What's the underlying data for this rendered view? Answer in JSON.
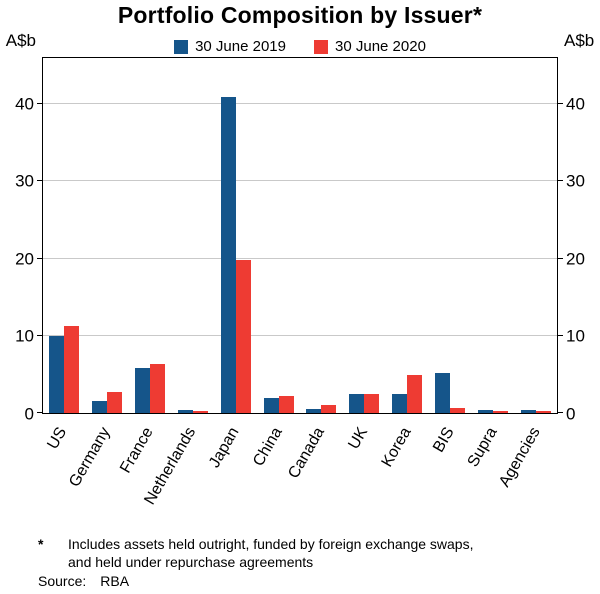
{
  "title": "Portfolio Composition by Issuer*",
  "chart_data": {
    "type": "bar",
    "title": "Portfolio Composition by Issuer*",
    "categories": [
      "US",
      "Germany",
      "France",
      "Netherlands",
      "Japan",
      "China",
      "Canada",
      "UK",
      "Korea",
      "BIS",
      "Supra",
      "Agencies"
    ],
    "series": [
      {
        "name": "30 June 2019",
        "color": "#15558A",
        "values": [
          10.0,
          1.5,
          5.8,
          0.4,
          41.0,
          2.0,
          0.5,
          2.4,
          2.4,
          5.2,
          0.4,
          0.4
        ]
      },
      {
        "name": "30 June 2020",
        "color": "#EE3B33",
        "values": [
          11.3,
          2.7,
          6.4,
          0.3,
          19.8,
          2.2,
          1.1,
          2.4,
          4.9,
          0.7,
          0.3,
          0.2
        ]
      }
    ],
    "ylabel_left": "A$b",
    "ylabel_right": "A$b",
    "ylim": [
      0,
      46
    ],
    "yticks": [
      0,
      10,
      20,
      30,
      40
    ],
    "grid": true,
    "gridline_color": "#c9c9c9",
    "axis_color": "#000000",
    "legend_position": "top-center"
  },
  "footnote": {
    "marker": "*",
    "lines": [
      "Includes assets held outright, funded by foreign exchange swaps,",
      "and held under repurchase agreements"
    ],
    "source_label": "Source:",
    "source_value": "RBA"
  }
}
